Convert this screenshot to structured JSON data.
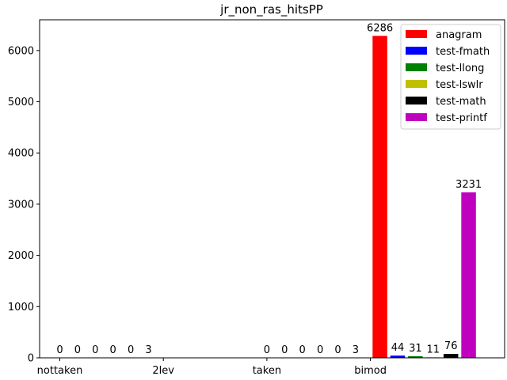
{
  "chart_data": {
    "type": "bar",
    "title": "jr_non_ras_hitsPP",
    "xlabel": "",
    "ylabel": "",
    "categories": [
      "nottaken",
      "2lev",
      "taken",
      "bimod"
    ],
    "ylim": [
      0,
      6600
    ],
    "yticks": [
      0,
      1000,
      2000,
      3000,
      4000,
      5000,
      6000
    ],
    "legend_position": "top-right",
    "series": [
      {
        "name": "anagram",
        "color": "#ff0000",
        "values": [
          0,
          null,
          0,
          6286
        ]
      },
      {
        "name": "test-fmath",
        "color": "#0000ff",
        "values": [
          0,
          null,
          0,
          44
        ]
      },
      {
        "name": "test-llong",
        "color": "#008000",
        "values": [
          0,
          null,
          0,
          31
        ]
      },
      {
        "name": "test-lswlr",
        "color": "#bfbf00",
        "values": [
          0,
          null,
          0,
          11
        ]
      },
      {
        "name": "test-math",
        "color": "#000000",
        "values": [
          0,
          null,
          0,
          76
        ]
      },
      {
        "name": "test-printf",
        "color": "#bf00bf",
        "values": [
          3,
          null,
          3,
          3231
        ]
      }
    ]
  }
}
